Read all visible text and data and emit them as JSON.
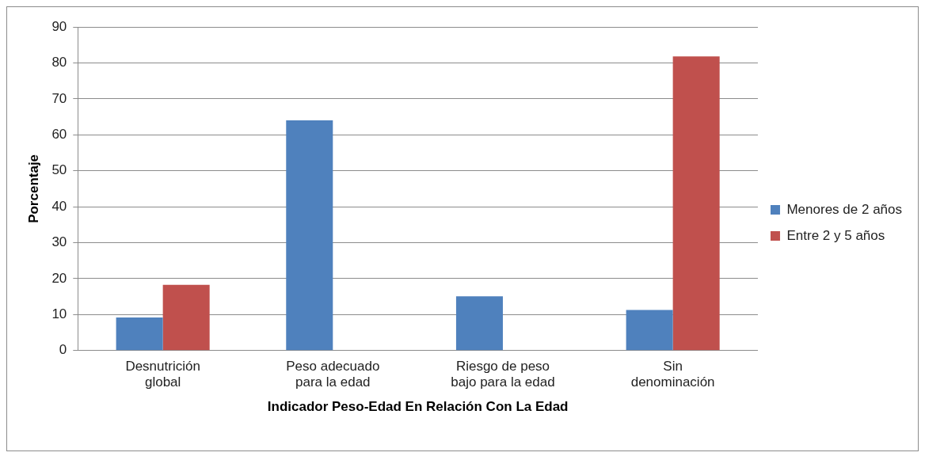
{
  "chart_data": {
    "type": "bar",
    "xlabel": "Indicador Peso-Edad En Relación Con La Edad",
    "ylabel": "Porcentaje",
    "categories": [
      "Desnutrición global",
      "Peso adecuado para la edad",
      "Riesgo de peso bajo para la edad",
      "Sin denominación"
    ],
    "series": [
      {
        "name": "Menores de 2 años",
        "color": "#4f81bd",
        "values": [
          9.2,
          64,
          15.1,
          11.3
        ]
      },
      {
        "name": "Entre 2 y 5 años",
        "color": "#c0504d",
        "values": [
          18.3,
          0,
          0,
          81.8
        ]
      }
    ],
    "ylim": [
      0,
      90
    ],
    "yticks": [
      0,
      10,
      20,
      30,
      40,
      50,
      60,
      70,
      80,
      90
    ],
    "grid": "y",
    "legend": "right"
  }
}
